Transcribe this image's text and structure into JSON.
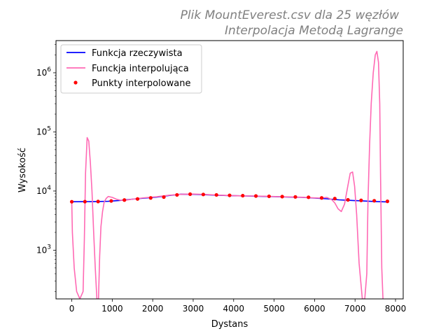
{
  "chart_data": {
    "type": "line",
    "title_line1": "Plik MountEverest.csv dla 25 węzłów",
    "title_line2": "Interpolacja Metodą Lagrange",
    "xlabel": "Dystans",
    "ylabel": "Wysokość",
    "xlim": [
      -390,
      8190
    ],
    "ylim_log": [
      150,
      3500000
    ],
    "yscale": "log",
    "x_ticks": [
      0,
      1000,
      2000,
      3000,
      4000,
      5000,
      6000,
      7000,
      8000
    ],
    "x_tick_labels": [
      "0",
      "1000",
      "2000",
      "3000",
      "4000",
      "5000",
      "6000",
      "7000",
      "8000"
    ],
    "y_ticks": [
      {
        "value": 1000,
        "base": "10",
        "exp": "3"
      },
      {
        "value": 10000,
        "base": "10",
        "exp": "4"
      },
      {
        "value": 100000,
        "base": "10",
        "exp": "5"
      },
      {
        "value": 1000000,
        "base": "10",
        "exp": "6"
      }
    ],
    "legend": {
      "placement": "top-left",
      "entries": [
        "Funkcja rzeczywista",
        "Funckja interpolująca",
        "Punkty interpolowane"
      ]
    },
    "colors": {
      "real": "#0000ff",
      "interp": "#ff69b4",
      "points": "#ff0000"
    },
    "series": [
      {
        "name": "Funkcja rzeczywista",
        "x": [
          0,
          300,
          600,
          900,
          1200,
          1500,
          1800,
          2100,
          2400,
          2700,
          3000,
          3300,
          3600,
          3900,
          4200,
          4500,
          4800,
          5100,
          5400,
          5700,
          6000,
          6300,
          6600,
          6900,
          7200,
          7500,
          7800
        ],
        "y": [
          6600,
          6620,
          6650,
          6700,
          6950,
          7300,
          7600,
          7900,
          8400,
          8850,
          8800,
          8650,
          8500,
          8380,
          8300,
          8200,
          8100,
          8000,
          7900,
          7800,
          7600,
          7400,
          7100,
          6950,
          6800,
          6650,
          6550
        ]
      },
      {
        "name": "Funckja interpolująca",
        "x": [
          0,
          15,
          60,
          120,
          200,
          280,
          310,
          340,
          380,
          420,
          460,
          500,
          540,
          580,
          620,
          660,
          690,
          720,
          760,
          800,
          850,
          900,
          1000,
          1100,
          1200,
          1300,
          1500,
          1800,
          2100,
          2400,
          2700,
          3000,
          3300,
          3600,
          3900,
          4200,
          4500,
          4800,
          5100,
          5400,
          5700,
          6000,
          6150,
          6300,
          6420,
          6500,
          6580,
          6660,
          6740,
          6820,
          6880,
          6940,
          6990,
          7040,
          7100,
          7180,
          7240,
          7290,
          7320,
          7360,
          7400,
          7450,
          7500,
          7540,
          7580,
          7610,
          7630,
          7660,
          7690
        ],
        "y": [
          6700,
          2000,
          500,
          200,
          150,
          200,
          1500,
          20000,
          80000,
          70000,
          30000,
          10000,
          2000,
          500,
          150,
          150,
          800,
          2500,
          4500,
          6500,
          7500,
          8100,
          7800,
          7300,
          7000,
          6950,
          7300,
          7700,
          8000,
          8500,
          8800,
          8900,
          8750,
          8550,
          8400,
          8300,
          8250,
          8150,
          8050,
          7950,
          7850,
          7650,
          7600,
          7800,
          7200,
          6300,
          5000,
          4500,
          6000,
          12000,
          20000,
          21000,
          12000,
          4000,
          600,
          150,
          150,
          400,
          6800,
          60000,
          300000,
          1000000,
          2000000,
          2300000,
          1500000,
          300000,
          20000,
          500,
          150
        ]
      },
      {
        "name": "Punkty interpolowane",
        "x": [
          0,
          325,
          650,
          975,
          1300,
          1625,
          1950,
          2275,
          2600,
          2925,
          3250,
          3575,
          3900,
          4225,
          4550,
          4875,
          5200,
          5525,
          5850,
          6175,
          6500,
          6825,
          7150,
          7475,
          7800
        ],
        "y": [
          6600,
          6620,
          6650,
          6800,
          7050,
          7350,
          7650,
          7900,
          8600,
          8850,
          8750,
          8600,
          8450,
          8350,
          8250,
          8150,
          8050,
          7950,
          7850,
          7650,
          7450,
          7100,
          6950,
          6850,
          6700
        ]
      }
    ]
  }
}
